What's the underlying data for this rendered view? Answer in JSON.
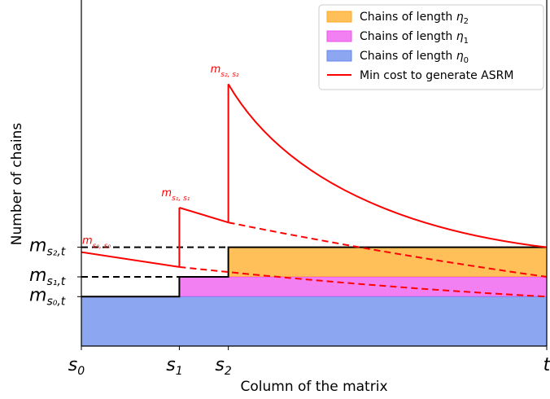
{
  "chart_data": {
    "type": "area",
    "xlabel": "Column of the matrix",
    "ylabel": "Number of chains",
    "x_ticks": [
      {
        "id": "s0",
        "base": "s",
        "sub": "0",
        "x": 0
      },
      {
        "id": "s1",
        "base": "s",
        "sub": "1",
        "x": 1
      },
      {
        "id": "s2",
        "base": "s",
        "sub": "2",
        "x": 1.5
      },
      {
        "id": "t",
        "base": "t",
        "sub": "",
        "x": 4.75
      }
    ],
    "y_ticks": [
      {
        "id": "ms0t",
        "base": "m",
        "sub": "s₀,t",
        "y": 1.0
      },
      {
        "id": "ms1t",
        "base": "m",
        "sub": "s₁,t",
        "y": 1.4
      },
      {
        "id": "ms2t",
        "base": "m",
        "sub": "s₂,t",
        "y": 2.0
      }
    ],
    "xlim": [
      0,
      4.75
    ],
    "ylim": [
      0,
      7.0
    ],
    "stacks": [
      {
        "name": "Chains of length η₀",
        "color": "#6688ee",
        "x_start": 0,
        "height": 1.0
      },
      {
        "name": "Chains of length η₁",
        "color": "#ee55ee",
        "x_start": 1,
        "height": 0.4
      },
      {
        "name": "Chains of length η₂",
        "color": "#ffaa22",
        "x_start": 1.5,
        "height": 0.6
      }
    ],
    "min_cost": {
      "name": "Min cost to generate ASRM",
      "color": "#ff0000",
      "segments": [
        {
          "x": [
            0,
            1
          ],
          "y": [
            1.9,
            1.6
          ]
        },
        {
          "x": [
            1,
            1
          ],
          "y": [
            1.6,
            2.8
          ]
        },
        {
          "x": [
            1,
            1.5
          ],
          "y": [
            2.8,
            2.5
          ]
        },
        {
          "x": [
            1.5,
            1.5
          ],
          "y": [
            2.5,
            5.3
          ]
        }
      ],
      "curve_peak": {
        "x": 1.5,
        "y": 5.3,
        "end_x": 4.75,
        "end_y": 2.0
      },
      "dashed_tails": [
        {
          "from_x": 1,
          "from_y": 1.6,
          "to_x": 4.75,
          "to_y": 1.0
        },
        {
          "from_x": 1.5,
          "from_y": 2.5,
          "to_x": 4.75,
          "to_y": 1.4
        }
      ]
    },
    "annotations": [
      {
        "id": "a0",
        "base": "m",
        "sub": "s₀, s₀",
        "x": 0,
        "y": 1.9
      },
      {
        "id": "a1",
        "base": "m",
        "sub": "s₁, s₁",
        "x": 1,
        "y": 2.8
      },
      {
        "id": "a2",
        "base": "m",
        "sub": "s₂, s₂",
        "x": 1.5,
        "y": 5.3
      }
    ],
    "legend": {
      "placement": "top-right",
      "entries": [
        {
          "label_base": "Chains of length ",
          "label_sym": "η",
          "label_sub": "2",
          "color": "#ffaa22",
          "kind": "patch"
        },
        {
          "label_base": "Chains of length ",
          "label_sym": "η",
          "label_sub": "1",
          "color": "#ee55ee",
          "kind": "patch"
        },
        {
          "label_base": "Chains of length ",
          "label_sym": "η",
          "label_sub": "0",
          "color": "#6688ee",
          "kind": "patch"
        },
        {
          "label_base": "Min cost to generate ASRM",
          "label_sym": "",
          "label_sub": "",
          "color": "#ff0000",
          "kind": "line"
        }
      ]
    }
  }
}
